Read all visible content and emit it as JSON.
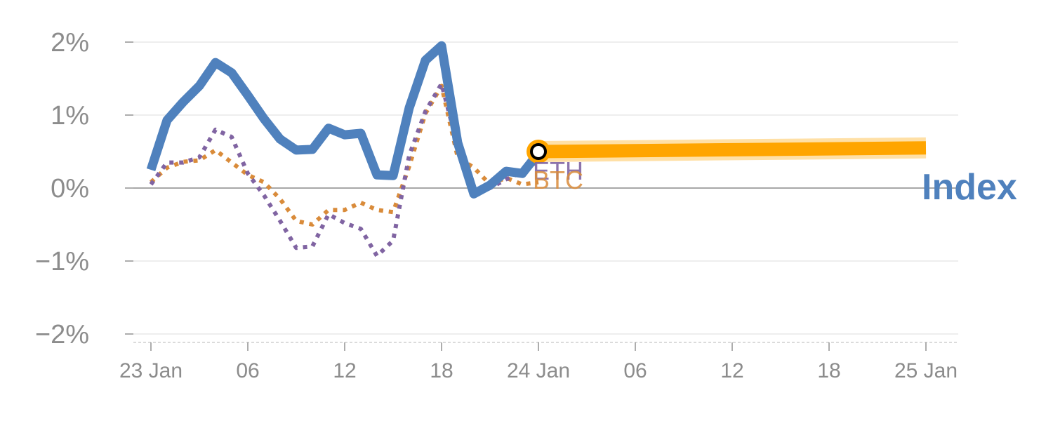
{
  "chart_data": {
    "type": "line",
    "title": "",
    "xlabel": "",
    "ylabel": "",
    "x_ticks": [
      {
        "hour": 0,
        "label": "23 Jan"
      },
      {
        "hour": 6,
        "label": "06"
      },
      {
        "hour": 12,
        "label": "12"
      },
      {
        "hour": 18,
        "label": "18"
      },
      {
        "hour": 24,
        "label": "24 Jan"
      },
      {
        "hour": 30,
        "label": "06"
      },
      {
        "hour": 36,
        "label": "12"
      },
      {
        "hour": 42,
        "label": "18"
      },
      {
        "hour": 48,
        "label": "25 Jan"
      }
    ],
    "y_ticks": [
      {
        "value": 2,
        "label": "2%"
      },
      {
        "value": 1,
        "label": "1%"
      },
      {
        "value": 0,
        "label": "0%"
      },
      {
        "value": -1,
        "label": "−1%"
      },
      {
        "value": -2,
        "label": "−2%"
      }
    ],
    "xlim": [
      -1,
      50
    ],
    "ylim": [
      -2.1,
      2.1
    ],
    "y_unit": "%",
    "grid": true,
    "series": [
      {
        "name": "Index",
        "color": "#4f81bd",
        "style": "solid",
        "x": [
          0,
          1,
          2,
          3,
          4,
          5,
          6,
          7,
          8,
          9,
          10,
          11,
          12,
          13,
          14,
          15,
          16,
          17,
          18,
          19,
          20,
          21,
          22,
          23,
          24
        ],
        "values": [
          0.25,
          0.93,
          1.18,
          1.4,
          1.72,
          1.58,
          1.27,
          0.95,
          0.67,
          0.52,
          0.53,
          0.82,
          0.73,
          0.75,
          0.18,
          0.17,
          1.1,
          1.75,
          1.95,
          0.62,
          -0.08,
          0.04,
          0.23,
          0.2,
          0.48
        ]
      },
      {
        "name": "ETH",
        "color": "#8064a2",
        "style": "dotted",
        "x": [
          0,
          1,
          2,
          3,
          4,
          5,
          6,
          7,
          8,
          9,
          10,
          11,
          12,
          13,
          14,
          15,
          16,
          17,
          18,
          19,
          20,
          21,
          22,
          23,
          24
        ],
        "values": [
          0.05,
          0.35,
          0.35,
          0.42,
          0.8,
          0.7,
          0.2,
          -0.1,
          -0.45,
          -0.82,
          -0.8,
          -0.36,
          -0.48,
          -0.56,
          -0.93,
          -0.72,
          0.45,
          1.05,
          1.43,
          0.57,
          -0.1,
          0.0,
          0.12,
          0.22,
          0.38
        ]
      },
      {
        "name": "BTC",
        "color": "#d98b3a",
        "style": "dotted",
        "x": [
          0,
          1,
          2,
          3,
          4,
          5,
          6,
          7,
          8,
          9,
          10,
          11,
          12,
          13,
          14,
          15,
          16,
          17,
          18,
          19,
          20,
          21,
          22,
          23,
          24
        ],
        "values": [
          0.08,
          0.28,
          0.36,
          0.38,
          0.52,
          0.35,
          0.18,
          0.08,
          -0.15,
          -0.45,
          -0.5,
          -0.3,
          -0.3,
          -0.2,
          -0.3,
          -0.33,
          0.3,
          1.02,
          1.4,
          0.42,
          0.28,
          0.05,
          0.14,
          0.05,
          0.08
        ]
      }
    ],
    "projection": {
      "color": "#ffa500",
      "x": [
        24,
        48
      ],
      "values": [
        0.5,
        0.55
      ]
    },
    "labels": {
      "index": "Index",
      "eth": "ETH",
      "btc": "BTC"
    }
  }
}
